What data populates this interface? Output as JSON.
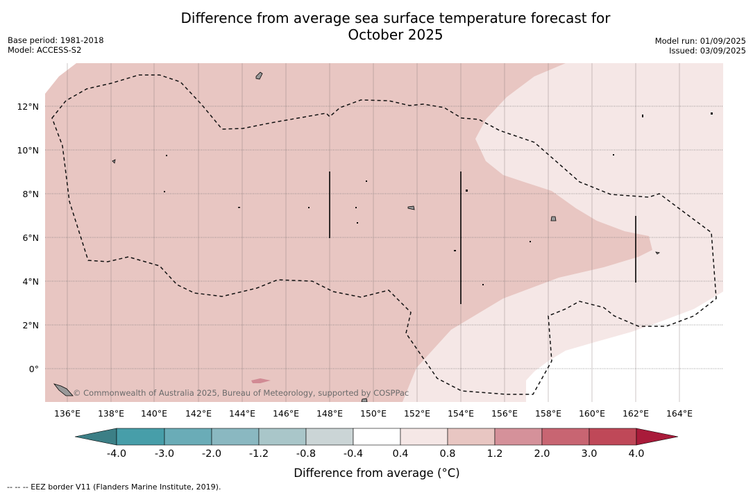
{
  "header": {
    "title_line1": "Difference from average sea surface temperature forecast for",
    "title_line2": "October 2025",
    "base_period": "Base period: 1981-2018",
    "model": "Model: ACCESS-S2",
    "model_run": "Model run: 01/09/2025",
    "issued": "Issued: 03/09/2025"
  },
  "map": {
    "lon_labels": [
      "136°E",
      "138°E",
      "140°E",
      "142°E",
      "144°E",
      "146°E",
      "148°E",
      "150°E",
      "152°E",
      "154°E",
      "156°E",
      "158°E",
      "160°E",
      "162°E",
      "164°E"
    ],
    "lat_labels": [
      "12°N",
      "10°N",
      "8°N",
      "6°N",
      "4°N",
      "2°N",
      "0°"
    ],
    "credit": "© Commonwealth of Australia 2025, Bureau of Meteorology, supported by COSPPac",
    "fill_colors": {
      "anomaly_0.8_1.2": "#e8c6c2",
      "anomaly_0.4_0.8": "#f5e7e6",
      "anomaly_-0.4_0.4": "#ffffff",
      "land": "#999999"
    }
  },
  "colorbar": {
    "tick_labels": [
      "-4.0",
      "-3.0",
      "-2.0",
      "-1.2",
      "-0.8",
      "-0.4",
      "0.4",
      "0.8",
      "1.2",
      "2.0",
      "3.0",
      "4.0"
    ],
    "colors": [
      "#3c7f86",
      "#479ea9",
      "#6aacb7",
      "#8ab8c1",
      "#a9c6c9",
      "#cbd5d6",
      "#ffffff",
      "#f5e7e6",
      "#e8c6c2",
      "#d5919a",
      "#c86572",
      "#bf4858",
      "#a91b3a"
    ],
    "label": "Difference from average (°C)"
  },
  "footer": {
    "legend": "-- -- -- EEZ border V11 (Flanders Marine Institute, 2019)."
  }
}
